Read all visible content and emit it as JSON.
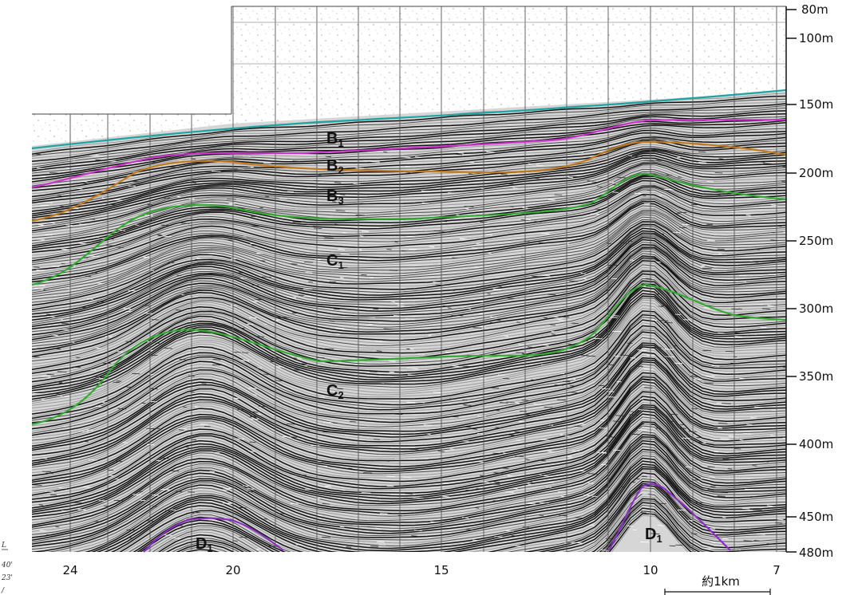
{
  "depth_scale": {
    "ticks": [
      "80m",
      "100m",
      "150m",
      "200m",
      "250m",
      "300m",
      "350m",
      "400m",
      "450m",
      "480m"
    ]
  },
  "distance_scale": {
    "ticks": [
      "24",
      "20",
      "15",
      "10",
      "7"
    ],
    "scale_bar_label": "約1km"
  },
  "layers": [
    {
      "base": "B",
      "sub": "1"
    },
    {
      "base": "B",
      "sub": "2"
    },
    {
      "base": "B",
      "sub": "3"
    },
    {
      "base": "C",
      "sub": "1"
    },
    {
      "base": "C",
      "sub": "2"
    },
    {
      "base": "D",
      "sub": "1"
    },
    {
      "base": "D",
      "sub": "1"
    }
  ],
  "horizon_colors": {
    "seafloor": "#1fa3a3",
    "B1_B2": "#cc33cc",
    "B2_B3": "#c07a1e",
    "B3_C1": "#33aa33",
    "C1_C2": "#33aa33",
    "D1_top": "#8a2fbf"
  },
  "margin_fragments": [
    "L",
    "40'",
    "23'",
    "/"
  ]
}
